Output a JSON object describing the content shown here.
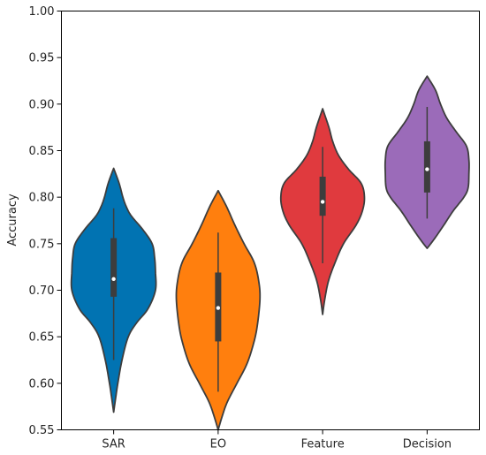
{
  "chart_data": {
    "type": "violin",
    "title": "",
    "xlabel": "",
    "ylabel": "Accuracy",
    "ylim": [
      0.55,
      1.0
    ],
    "yticks": [
      "0.55",
      "0.60",
      "0.65",
      "0.70",
      "0.75",
      "0.80",
      "0.85",
      "0.90",
      "0.95",
      "1.00"
    ],
    "grid": false,
    "categories": [
      "SAR",
      "EO",
      "Feature",
      "Decision"
    ],
    "colors": [
      "#0173b2",
      "#ff7f0e",
      "#e03a3e",
      "#9b6bb9"
    ],
    "violins": [
      {
        "category": "SAR",
        "min": 0.569,
        "max": 0.831,
        "whisker_low": 0.625,
        "whisker_high": 0.788,
        "q1": 0.693,
        "median": 0.712,
        "q3": 0.756,
        "profile": [
          [
            0.569,
            0.0
          ],
          [
            0.585,
            0.05
          ],
          [
            0.6,
            0.1
          ],
          [
            0.625,
            0.2
          ],
          [
            0.65,
            0.35
          ],
          [
            0.665,
            0.55
          ],
          [
            0.68,
            0.82
          ],
          [
            0.7,
            1.0
          ],
          [
            0.72,
            1.0
          ],
          [
            0.735,
            0.98
          ],
          [
            0.75,
            0.92
          ],
          [
            0.765,
            0.7
          ],
          [
            0.78,
            0.42
          ],
          [
            0.79,
            0.3
          ],
          [
            0.8,
            0.22
          ],
          [
            0.815,
            0.13
          ],
          [
            0.831,
            0.0
          ]
        ]
      },
      {
        "category": "EO",
        "min": 0.55,
        "max": 0.807,
        "whisker_low": 0.591,
        "whisker_high": 0.762,
        "q1": 0.645,
        "median": 0.681,
        "q3": 0.719,
        "profile": [
          [
            0.55,
            0.0
          ],
          [
            0.565,
            0.1
          ],
          [
            0.58,
            0.22
          ],
          [
            0.6,
            0.45
          ],
          [
            0.62,
            0.68
          ],
          [
            0.64,
            0.83
          ],
          [
            0.66,
            0.93
          ],
          [
            0.69,
            1.0
          ],
          [
            0.71,
            0.97
          ],
          [
            0.73,
            0.86
          ],
          [
            0.75,
            0.62
          ],
          [
            0.77,
            0.4
          ],
          [
            0.79,
            0.2
          ],
          [
            0.807,
            0.0
          ]
        ]
      },
      {
        "category": "Feature",
        "min": 0.674,
        "max": 0.895,
        "whisker_low": 0.729,
        "whisker_high": 0.854,
        "q1": 0.78,
        "median": 0.795,
        "q3": 0.822,
        "profile": [
          [
            0.674,
            0.0
          ],
          [
            0.69,
            0.05
          ],
          [
            0.71,
            0.14
          ],
          [
            0.73,
            0.3
          ],
          [
            0.75,
            0.5
          ],
          [
            0.77,
            0.8
          ],
          [
            0.785,
            0.95
          ],
          [
            0.8,
            1.0
          ],
          [
            0.815,
            0.92
          ],
          [
            0.83,
            0.62
          ],
          [
            0.845,
            0.38
          ],
          [
            0.86,
            0.24
          ],
          [
            0.875,
            0.15
          ],
          [
            0.895,
            0.0
          ]
        ]
      },
      {
        "category": "Decision",
        "min": 0.745,
        "max": 0.93,
        "whisker_low": 0.777,
        "whisker_high": 0.897,
        "q1": 0.805,
        "median": 0.83,
        "q3": 0.86,
        "profile": [
          [
            0.745,
            0.0
          ],
          [
            0.755,
            0.17
          ],
          [
            0.77,
            0.4
          ],
          [
            0.785,
            0.62
          ],
          [
            0.8,
            0.88
          ],
          [
            0.81,
            0.98
          ],
          [
            0.825,
            1.0
          ],
          [
            0.84,
            1.0
          ],
          [
            0.855,
            0.94
          ],
          [
            0.87,
            0.7
          ],
          [
            0.885,
            0.47
          ],
          [
            0.9,
            0.32
          ],
          [
            0.915,
            0.2
          ],
          [
            0.93,
            0.0
          ]
        ]
      }
    ]
  }
}
